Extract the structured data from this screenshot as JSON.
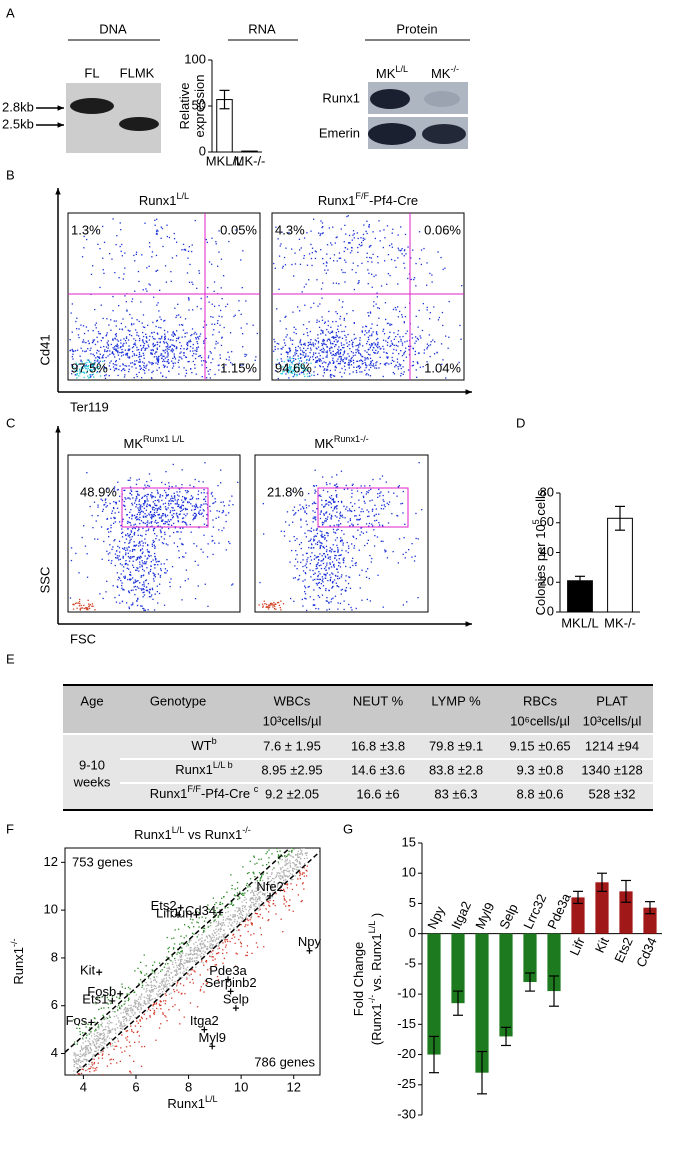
{
  "panel_labels": [
    "A",
    "B",
    "C",
    "D",
    "E",
    "F",
    "G"
  ],
  "dna": {
    "title": "DNA",
    "lanes": [
      "FL",
      "FLMK"
    ],
    "sizes": [
      "2.8kb",
      "2.5kb"
    ]
  },
  "protein": {
    "title": "Protein",
    "lanes": [
      [
        "MK",
        "L/L"
      ],
      [
        "MK",
        "-/-"
      ]
    ],
    "rows": [
      "Runx1",
      "Emerin"
    ]
  },
  "flow_b": {
    "x_label": "Ter119",
    "y_label": "Cd41",
    "plots": [
      {
        "title": [
          "Runx1",
          "L/L"
        ],
        "quadrants": [
          "1.3%",
          "0.05%",
          "97.5%",
          "1.15%"
        ]
      },
      {
        "title": [
          "Runx1",
          "F/F",
          "-Pf4-Cre"
        ],
        "quadrants": [
          "4.3%",
          "0.06%",
          "94.6%",
          "1.04%"
        ]
      }
    ]
  },
  "flow_c": {
    "x_label": "FSC",
    "y_label": "SSC",
    "plots": [
      {
        "title": [
          "MK",
          "Runx1 L/L"
        ],
        "gate": "48.9%"
      },
      {
        "title": [
          "MK",
          "Runx1-/-"
        ],
        "gate": "21.8%"
      }
    ]
  },
  "table": {
    "header": [
      [
        "Age"
      ],
      [
        "Genotype"
      ],
      [
        "WBCs",
        "10³cells/µl"
      ],
      [
        "NEUT %"
      ],
      [
        "LYMP %"
      ],
      [
        "RBCs",
        "10⁶cells/µl"
      ],
      [
        "PLAT",
        "10³cells/µl"
      ]
    ],
    "age": [
      "9-10",
      "weeks"
    ],
    "rows": [
      {
        "genotype": [
          "WT",
          "b"
        ],
        "cells": [
          "7.6 ± 1.95",
          "16.8 ±3.8",
          "79.8 ±9.1",
          "9.15 ±0.65",
          "1214 ±94"
        ]
      },
      {
        "genotype": [
          "Runx1",
          "L/L b"
        ],
        "cells": [
          "8.95 ±2.95",
          "14.6 ±3.6",
          "83.8 ±2.8",
          "9.3 ±0.8",
          "1340 ±128"
        ]
      },
      {
        "genotype": [
          "Runx1",
          "F/F",
          "-Pf4-Cre ",
          "c"
        ],
        "cells": [
          "9.2 ±2.05",
          "16.6 ±6",
          "83 ±6.3",
          "8.8 ±0.6",
          "528 ±32"
        ]
      }
    ]
  },
  "chart_data": [
    {
      "type": "bar",
      "title": "RNA",
      "categories": [
        "MKL/L",
        "MK-/-"
      ],
      "values": [
        57,
        1
      ],
      "errors": [
        10,
        null
      ],
      "colors": [
        "#ffffff",
        "#ffffff"
      ],
      "ylabel": [
        [
          "Relative"
        ],
        [
          "expression"
        ]
      ],
      "ylim": [
        0,
        100
      ],
      "yticks": [
        0,
        50,
        100
      ]
    },
    {
      "type": "bar",
      "categories": [
        "MKL/L",
        "MK-/-"
      ],
      "values": [
        21,
        63
      ],
      "errors": [
        3,
        8
      ],
      "colors": [
        "#000000",
        "#ffffff"
      ],
      "ylabel": [
        [
          "Colonies per 10",
          "5",
          " cells"
        ]
      ],
      "ylim": [
        0,
        80
      ],
      "yticks": [
        0,
        20,
        40,
        60,
        80
      ]
    },
    {
      "type": "scatter",
      "title": [
        "Runx1",
        "L/L",
        " vs Runx1",
        "-/-"
      ],
      "xlabel": [
        "Runx1",
        "L/L"
      ],
      "ylabel": [
        "Runx1",
        "-/-"
      ],
      "annotations": [
        "753 genes",
        "786 genes"
      ],
      "xlim": [
        3.3,
        13
      ],
      "ylim": [
        3.1,
        12.6
      ],
      "xticks": [
        4,
        6,
        8,
        10,
        12
      ],
      "yticks": [
        4,
        6,
        8,
        10,
        12
      ],
      "point_labels": [
        "Ets2",
        "Lifr",
        "Jun",
        "Cd34",
        "Kit",
        "Fosb",
        "Ets1",
        "Fos",
        "Nfe2",
        "Npy",
        "Pde3a",
        "Serpinb2",
        "Selp",
        "Itga2",
        "Myl9"
      ],
      "x": [
        7.7,
        7.6,
        8.3,
        9.2,
        4.6,
        5.4,
        5.1,
        4.3,
        11.1,
        12.6,
        9.5,
        9.6,
        9.8,
        8.6,
        8.9
      ],
      "values": [
        10.1,
        9.8,
        9.8,
        9.9,
        7.4,
        6.5,
        6.2,
        5.3,
        10.6,
        8.3,
        7.1,
        6.6,
        5.9,
        5.0,
        4.3
      ],
      "colors": [
        "#2a6e22",
        "#2a6e22",
        "#2a6e22",
        "#2a6e22",
        "#2a6e22",
        "#2a6e22",
        "#2a6e22",
        "#2a6e22",
        "#7a1a12",
        "#7a1a12",
        "#7a1a12",
        "#7a1a12",
        "#7a1a12",
        "#7a1a12",
        "#7a1a12"
      ]
    },
    {
      "type": "bar",
      "categories": [
        "Npy",
        "Itga2",
        "Myl9",
        "Selp",
        "Lrrc32",
        "Pde3a",
        "Lifr",
        "Kit",
        "Ets2",
        "Cd34"
      ],
      "values": [
        -20,
        -11.5,
        -23,
        -17,
        -8,
        -9.5,
        6,
        8.5,
        7,
        4.3
      ],
      "errors": [
        3,
        2,
        3.5,
        1.5,
        1.5,
        2.5,
        1,
        1.5,
        1.8,
        1
      ],
      "colors": [
        "#1e7a1e",
        "#1e7a1e",
        "#1e7a1e",
        "#1e7a1e",
        "#1e7a1e",
        "#1e7a1e",
        "#a01818",
        "#a01818",
        "#a01818",
        "#a01818"
      ],
      "ylabel": [
        [
          "Fold Change"
        ],
        [
          "(Runx1",
          "-/-",
          " vs. Runx1",
          "L/L",
          " )"
        ]
      ],
      "ylim": [
        -30,
        15
      ],
      "yticks": [
        15,
        10,
        5,
        0,
        -5,
        -10,
        -15,
        -20,
        -25,
        -30
      ]
    }
  ]
}
